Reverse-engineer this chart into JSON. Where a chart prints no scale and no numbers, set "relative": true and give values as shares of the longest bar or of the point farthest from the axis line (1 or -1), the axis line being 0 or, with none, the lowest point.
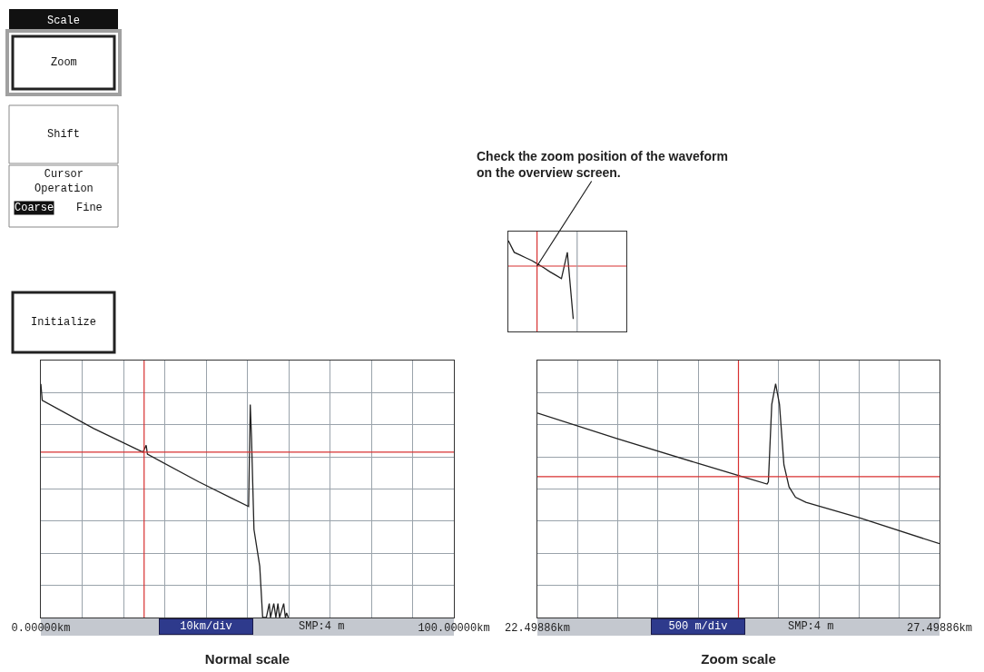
{
  "chart_data": [
    {
      "type": "other",
      "annotations": [
        "Scale",
        "Zoom",
        "Shift",
        "Cursor\nOperation",
        "Coarse",
        "Fine",
        "Initialize"
      ]
    },
    {
      "type": "line",
      "title": "Check the zoom position of the waveform\non the overview screen.",
      "categories": [
        null,
        null,
        null,
        null,
        null,
        null,
        null,
        null,
        null,
        null,
        null,
        null,
        null,
        null,
        null,
        null,
        null,
        null,
        null,
        null,
        null
      ],
      "relative": true,
      "tick_labels": false,
      "series": [
        {
          "color": "#222222",
          "values": [
            1.0,
            0.871,
            0.841,
            0.81,
            0.78,
            0.741,
            0.703,
            0.659,
            0.621,
            0.582,
            0.871,
            0.138,
            null,
            null,
            null,
            null,
            null,
            null,
            null,
            null,
            null
          ]
        }
      ],
      "ref_lines": [
        {
          "axis": "y",
          "value": 0.72,
          "color": "#d83030"
        }
      ]
    },
    {
      "type": "line",
      "xlabel": "Normal scale",
      "relative": true,
      "color": "#222222",
      "grid": true,
      "tick_labels": "x",
      "xlim": [
        0,
        100
      ],
      "xticks": [
        {
          "value": 0,
          "label": "0.00000km"
        },
        {
          "value": 10,
          "label": null
        },
        {
          "value": 20,
          "label": null
        },
        {
          "value": 30,
          "label": null
        },
        {
          "value": 40,
          "label": null
        },
        {
          "value": 50,
          "label": null
        },
        {
          "value": 60,
          "label": null
        },
        {
          "value": 70,
          "label": null
        },
        {
          "value": 80,
          "label": null
        },
        {
          "value": 90,
          "label": null
        },
        {
          "value": 100,
          "label": "100.00000km"
        }
      ],
      "x": [
        0,
        0.33,
        12.8,
        24.7,
        25.5,
        25.8,
        38.2,
        50.3,
        50.7,
        51.0,
        51.6,
        53.0,
        53.7,
        54.6,
        55.3,
        55.6,
        56.4,
        56.9,
        57.4,
        57.8,
        58.8,
        59.2,
        59.5,
        59.9
      ],
      "values": [
        1.0,
        0.93,
        0.809,
        0.708,
        0.737,
        0.699,
        0.581,
        0.475,
        0.911,
        0.771,
        0.377,
        0.219,
        0,
        0,
        0.06,
        0,
        0.06,
        0,
        0.06,
        0,
        0.06,
        0,
        0.02,
        0
      ],
      "ref_lines": [
        {
          "axis": "x",
          "value": 25,
          "color": "#d83030"
        },
        {
          "axis": "y",
          "value": 0.708,
          "color": "#d83030"
        }
      ],
      "annotations": [
        "10km/div",
        "SMP:4 m"
      ]
    },
    {
      "type": "line",
      "xlabel": "Zoom scale",
      "relative": true,
      "color": "#222222",
      "grid": true,
      "tick_labels": "x",
      "xlim": [
        22.49886,
        27.49886
      ],
      "xticks": [
        {
          "value": 22.49886,
          "label": "22.49886km"
        },
        {
          "value": 22.99886,
          "label": null
        },
        {
          "value": 23.49886,
          "label": null
        },
        {
          "value": 23.99886,
          "label": null
        },
        {
          "value": 24.49886,
          "label": null
        },
        {
          "value": 24.99886,
          "label": null
        },
        {
          "value": 25.49886,
          "label": null
        },
        {
          "value": 25.99886,
          "label": null
        },
        {
          "value": 26.49886,
          "label": null
        },
        {
          "value": 26.99886,
          "label": null
        },
        {
          "value": 27.49886,
          "label": "27.49886km"
        }
      ],
      "x": [
        22.499,
        23.494,
        24.521,
        25.018,
        25.355,
        25.371,
        25.413,
        25.461,
        25.509,
        25.564,
        25.628,
        25.708,
        25.837,
        26.51,
        27.49886
      ],
      "values": [
        0.875,
        0.765,
        0.657,
        0.606,
        0.571,
        0.581,
        0.912,
        1.0,
        0.912,
        0.654,
        0.559,
        0.515,
        0.493,
        0.426,
        0.316
      ],
      "ref_lines": [
        {
          "axis": "x",
          "value": 24.99886,
          "color": "#d83030"
        },
        {
          "axis": "y",
          "value": 0.603,
          "color": "#d83030"
        }
      ],
      "annotations": [
        "500 m/div",
        "SMP:4 m"
      ]
    }
  ]
}
